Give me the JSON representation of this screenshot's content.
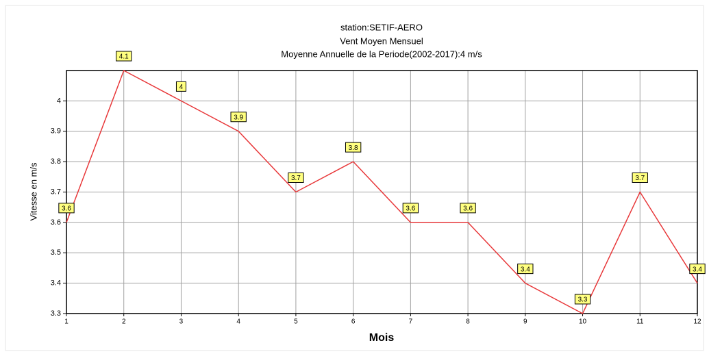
{
  "chart_data": {
    "type": "line",
    "title": "station:SETIF-AERO",
    "subtitle": "Vent Moyen Mensuel",
    "annotation": "Moyenne Annuelle de la Periode(2002-2017):4 m/s",
    "x_label": "Mois",
    "y_label": "Vitesse en m/s",
    "x": [
      1,
      2,
      3,
      4,
      5,
      6,
      7,
      8,
      9,
      10,
      11,
      12
    ],
    "series": [
      {
        "name": "Vitesse",
        "color": "#e8383a",
        "values": [
          3.6,
          4.1,
          4,
          3.9,
          3.7,
          3.8,
          3.6,
          3.6,
          3.4,
          3.3,
          3.7,
          3.4
        ]
      }
    ],
    "xlim": [
      1,
      12
    ],
    "xticks": [
      1,
      2,
      3,
      4,
      5,
      6,
      7,
      8,
      9,
      10,
      11,
      12
    ],
    "ylim": [
      3.3,
      4.1
    ],
    "yticks": [
      3.3,
      3.4,
      3.5,
      3.6,
      3.7,
      3.8,
      3.9,
      4
    ],
    "grid": true
  }
}
